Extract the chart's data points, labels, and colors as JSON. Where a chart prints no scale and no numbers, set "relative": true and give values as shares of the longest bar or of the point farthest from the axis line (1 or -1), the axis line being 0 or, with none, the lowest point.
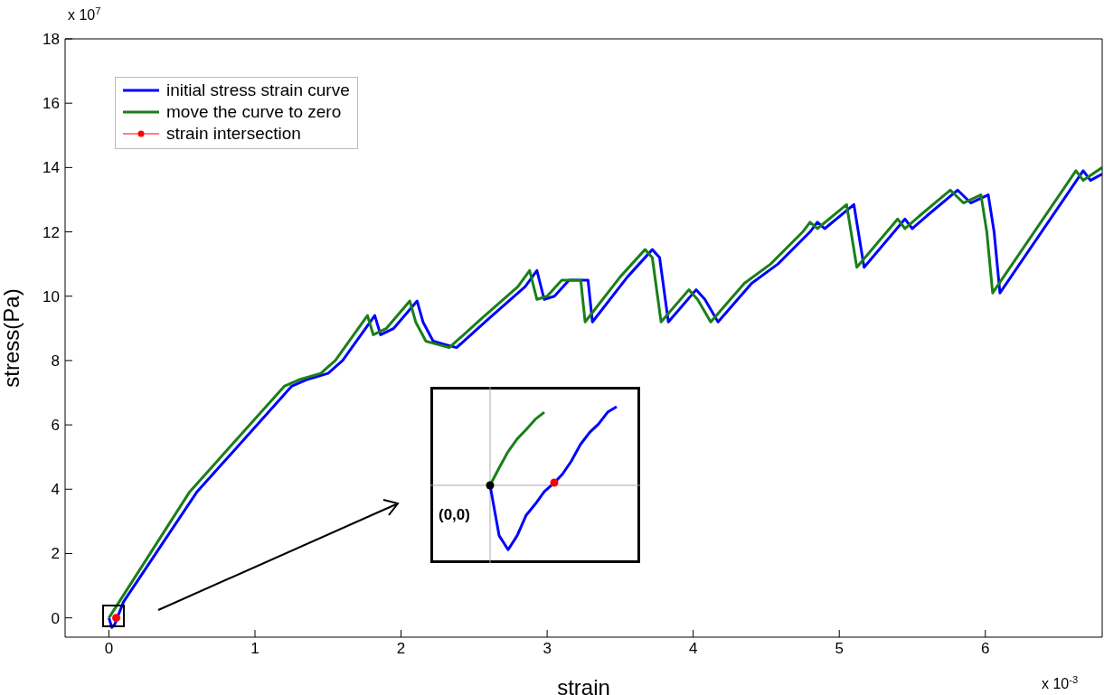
{
  "chart_data": [
    {
      "type": "line",
      "xlabel": "strain",
      "ylabel": "stress(Pa)",
      "xlim": [
        -0.3,
        6.8
      ],
      "ylim": [
        -0.6,
        18
      ],
      "xticks": [
        0,
        1,
        2,
        3,
        4,
        5,
        6
      ],
      "yticks": [
        0,
        2,
        4,
        6,
        8,
        10,
        12,
        14,
        16,
        18
      ],
      "legend": "top left",
      "line_style": "solid",
      "grid": false,
      "annotations": [
        "x 10$^{7}$",
        "x 10$^{-3}$"
      ],
      "series": [
        {
          "name": "initial stress strain curve",
          "color": "#0000ff",
          "x": [
            0,
            0.02,
            0.04,
            0.1,
            0.6,
            1.25,
            1.35,
            1.5,
            1.6,
            1.82,
            1.86,
            1.95,
            2.11,
            2.15,
            2.22,
            2.3,
            2.38,
            2.6,
            2.85,
            2.93,
            2.98,
            3.05,
            3.15,
            3.28,
            3.31,
            3.55,
            3.72,
            3.77,
            3.83,
            4.02,
            4.08,
            4.17,
            4.4,
            4.58,
            4.8,
            4.85,
            4.9,
            5.1,
            5.17,
            5.45,
            5.5,
            5.6,
            5.81,
            5.9,
            6.02,
            6.06,
            6.1,
            6.67,
            6.72,
            6.8
          ],
          "values": [
            0,
            -0.3,
            -0.2,
            0.5,
            3.9,
            7.2,
            7.4,
            7.6,
            8.0,
            9.4,
            8.8,
            9.0,
            9.85,
            9.2,
            8.6,
            8.5,
            8.4,
            9.3,
            10.3,
            10.8,
            9.9,
            10.0,
            10.5,
            10.5,
            9.2,
            10.6,
            11.45,
            11.2,
            9.2,
            10.2,
            9.9,
            9.2,
            10.4,
            11.0,
            12.0,
            12.3,
            12.1,
            12.85,
            10.9,
            12.4,
            12.1,
            12.5,
            13.3,
            12.9,
            13.15,
            12.0,
            10.1,
            13.9,
            13.6,
            13.8
          ]
        },
        {
          "name": "move the curve to zero",
          "color": "#1a7f1a",
          "x": [
            0,
            0.55,
            1.2,
            1.3,
            1.45,
            1.55,
            1.77,
            1.81,
            1.9,
            2.06,
            2.1,
            2.17,
            2.25,
            2.33,
            2.55,
            2.8,
            2.88,
            2.93,
            3.0,
            3.1,
            3.23,
            3.26,
            3.5,
            3.67,
            3.72,
            3.78,
            3.97,
            4.03,
            4.12,
            4.35,
            4.53,
            4.75,
            4.8,
            4.85,
            5.05,
            5.12,
            5.4,
            5.45,
            5.55,
            5.76,
            5.85,
            5.97,
            6.01,
            6.05,
            6.62,
            6.67,
            6.8
          ],
          "values": [
            0,
            3.9,
            7.2,
            7.4,
            7.6,
            8.0,
            9.4,
            8.8,
            9.0,
            9.85,
            9.2,
            8.6,
            8.5,
            8.4,
            9.3,
            10.3,
            10.8,
            9.9,
            10.0,
            10.5,
            10.5,
            9.2,
            10.6,
            11.45,
            11.2,
            9.2,
            10.2,
            9.9,
            9.2,
            10.4,
            11.0,
            12.0,
            12.3,
            12.1,
            12.85,
            10.9,
            12.4,
            12.1,
            12.5,
            13.3,
            12.9,
            13.15,
            12.0,
            10.1,
            13.9,
            13.6,
            14.0
          ]
        },
        {
          "name": "strain intersection",
          "color": "#ff0000",
          "type": "scatter",
          "marker": "circle",
          "x": [
            0.05
          ],
          "values": [
            0
          ]
        }
      ]
    },
    {
      "type": "line",
      "relative": true,
      "annotations": [
        "(0,0)"
      ],
      "categories": [
        null,
        null,
        null,
        null,
        null,
        null,
        null,
        null,
        null,
        null,
        null,
        null,
        null,
        null,
        null
      ],
      "series": [
        {
          "color": "#1a7f1a",
          "values": [
            0,
            0.22,
            0.43,
            0.59,
            0.71,
            0.84,
            0.93,
            null,
            null,
            null,
            null,
            null,
            null,
            null,
            null
          ]
        },
        {
          "color": "#0000ff",
          "values": [
            0,
            -0.64,
            -0.82,
            -0.64,
            -0.38,
            -0.24,
            -0.08,
            0.02,
            0.14,
            0.31,
            0.52,
            0.67,
            0.78,
            0.93,
            1
          ]
        }
      ]
    }
  ]
}
